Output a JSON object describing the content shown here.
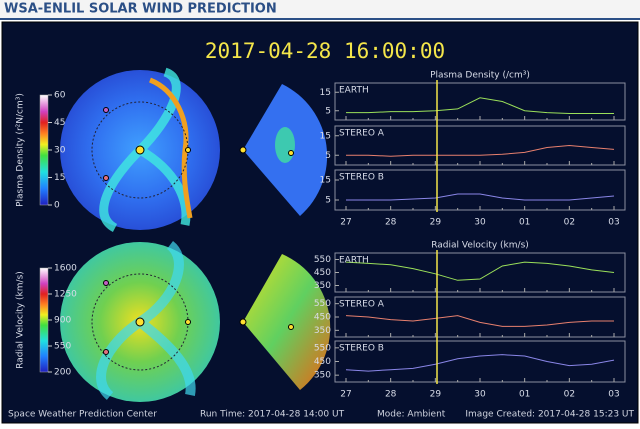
{
  "header": {
    "title": "WSA-ENLIL SOLAR WIND PREDICTION"
  },
  "timestamp": "2017-04-28 16:00:00",
  "colorbars": [
    {
      "label": "Plasma Density (r²N/cm³)",
      "ticks": [
        60,
        45,
        30,
        15,
        0
      ]
    },
    {
      "label": "Radial Velocity (km/s)",
      "ticks": [
        1600,
        1250,
        900,
        550,
        200
      ]
    }
  ],
  "chart_data": [
    {
      "type": "line",
      "title": "Plasma Density (/cm³)",
      "categories": [
        "27",
        null,
        "28",
        null,
        "29",
        null,
        "30",
        null,
        "01",
        null,
        "02",
        null,
        "03"
      ],
      "series": [
        {
          "name": "EARTH",
          "color": "#9be05a",
          "values": [
            4,
            4,
            4.5,
            4.5,
            5,
            6,
            12,
            10,
            5,
            4,
            3.5,
            3.5,
            3.5
          ]
        }
      ],
      "ylim": [
        0,
        20
      ],
      "yticks": [
        15,
        5
      ]
    },
    {
      "type": "line",
      "categories": [
        "27",
        null,
        "28",
        null,
        "29",
        null,
        "30",
        null,
        "01",
        null,
        "02",
        null,
        "03"
      ],
      "series": [
        {
          "name": "STEREO A",
          "color": "#e8806e",
          "values": [
            5,
            5,
            4.5,
            5,
            5,
            5,
            5,
            5.5,
            6.5,
            9,
            10,
            9,
            8
          ]
        }
      ],
      "ylim": [
        0,
        20
      ],
      "yticks": [
        15,
        5
      ]
    },
    {
      "type": "line",
      "categories": [
        "27",
        null,
        "28",
        null,
        "29",
        null,
        "30",
        null,
        "01",
        null,
        "02",
        null,
        "03"
      ],
      "series": [
        {
          "name": "STEREO B",
          "color": "#8a86e8",
          "values": [
            5,
            5,
            5,
            5.5,
            6,
            8,
            8,
            6,
            5,
            5,
            5,
            6,
            7
          ]
        }
      ],
      "ylim": [
        0,
        20
      ],
      "yticks": [
        15,
        5
      ]
    },
    {
      "type": "line",
      "title": "Radial Velocity (km/s)",
      "categories": [
        "27",
        null,
        "28",
        null,
        "29",
        null,
        "30",
        null,
        "01",
        null,
        "02",
        null,
        "03"
      ],
      "series": [
        {
          "name": "EARTH",
          "color": "#9be05a",
          "values": [
            530,
            520,
            510,
            480,
            440,
            390,
            400,
            500,
            530,
            520,
            500,
            470,
            450
          ]
        }
      ],
      "ylim": [
        300,
        600
      ],
      "yticks": [
        550,
        450,
        350
      ]
    },
    {
      "type": "line",
      "categories": [
        "27",
        null,
        "28",
        null,
        "29",
        null,
        "30",
        null,
        "01",
        null,
        "02",
        null,
        "03"
      ],
      "series": [
        {
          "name": "STEREO A",
          "color": "#e8806e",
          "values": [
            460,
            450,
            430,
            420,
            440,
            460,
            410,
            380,
            380,
            390,
            410,
            420,
            420
          ]
        }
      ],
      "ylim": [
        300,
        600
      ],
      "yticks": [
        550,
        450,
        350
      ]
    },
    {
      "type": "line",
      "categories": [
        "27",
        null,
        "28",
        null,
        "29",
        null,
        "30",
        null,
        "01",
        null,
        "02",
        null,
        "03"
      ],
      "series": [
        {
          "name": "STEREO B",
          "color": "#8a86e8",
          "values": [
            390,
            380,
            390,
            400,
            430,
            470,
            490,
            500,
            490,
            450,
            420,
            430,
            460
          ]
        }
      ],
      "ylim": [
        300,
        600
      ],
      "yticks": [
        550,
        450,
        350
      ]
    }
  ],
  "footer": {
    "center": "Space Weather Prediction Center",
    "run_time": "Run Time: 2017-04-28 14:00 UT",
    "mode": "Mode: Ambient",
    "created": "Image Created: 2017-04-28 15:23 UT"
  }
}
